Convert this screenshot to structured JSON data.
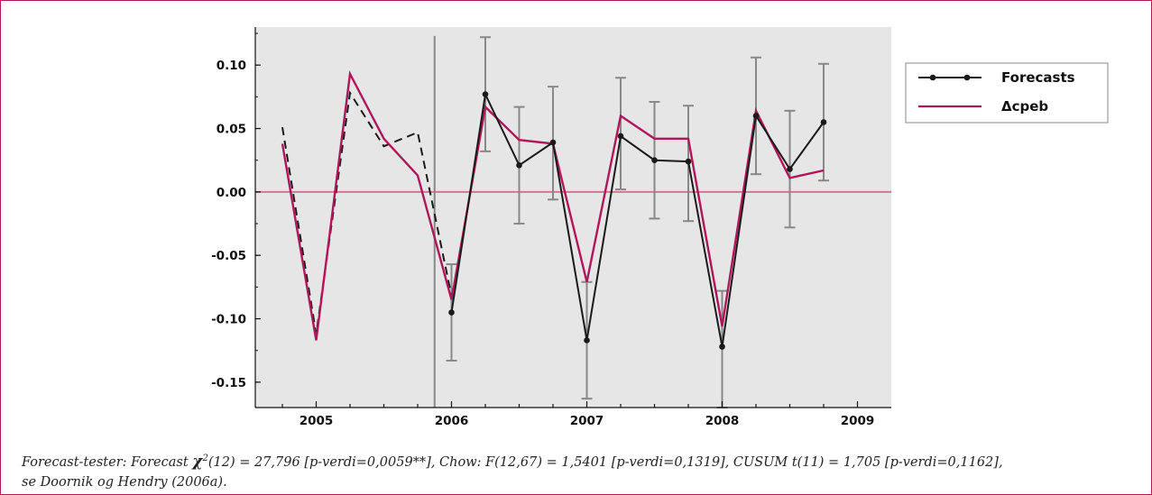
{
  "chart_data": {
    "type": "line",
    "title": "",
    "xlabel": "",
    "ylabel": "",
    "xlim": [
      2004.55,
      2009.25
    ],
    "ylim": [
      -0.17,
      0.13
    ],
    "x_ticks": [
      2005,
      2006,
      2007,
      2008,
      2009
    ],
    "x_tick_labels": [
      "2005",
      "2006",
      "2007",
      "2008",
      "2009"
    ],
    "y_ticks": [
      0.1,
      0.05,
      0.0,
      -0.05,
      -0.1,
      -0.15
    ],
    "y_tick_labels": [
      "0.10",
      "0.05",
      "0.00",
      "-0.05",
      "-0.10",
      "-0.15"
    ],
    "grid": false,
    "background": "#e6e6e6",
    "legend_position": "right",
    "colors": {
      "forecasts": "#1a1a1a",
      "actual": "#b0175a",
      "zero_line": "#d9738f",
      "error_bars": "#888888",
      "frame": "#b0175a"
    },
    "series": [
      {
        "name": "Forecasts",
        "style": "line-with-markers",
        "x": [
          2006.0,
          2006.25,
          2006.5,
          2006.75,
          2007.0,
          2007.25,
          2007.5,
          2007.75,
          2008.0,
          2008.25,
          2008.5,
          2008.75
        ],
        "values": [
          -0.095,
          0.077,
          0.021,
          0.039,
          -0.117,
          0.044,
          0.025,
          0.024,
          -0.122,
          0.06,
          0.018,
          0.055
        ],
        "error_low": [
          -0.133,
          0.032,
          -0.025,
          -0.006,
          -0.163,
          0.002,
          -0.021,
          -0.023,
          -0.17,
          0.014,
          -0.028,
          0.009
        ],
        "error_high": [
          -0.057,
          0.122,
          0.067,
          0.083,
          -0.071,
          0.09,
          0.071,
          0.068,
          -0.078,
          0.106,
          0.064,
          0.101
        ]
      },
      {
        "name": "Δcpeb",
        "style": "line",
        "x": [
          2004.75,
          2005.0,
          2005.25,
          2005.5,
          2005.75,
          2006.0,
          2006.25,
          2006.5,
          2006.75,
          2007.0,
          2007.25,
          2007.5,
          2007.75,
          2008.0,
          2008.25,
          2008.5,
          2008.75
        ],
        "values": [
          0.038,
          -0.117,
          0.093,
          0.042,
          0.013,
          -0.085,
          0.067,
          0.041,
          0.038,
          -0.071,
          0.06,
          0.042,
          0.042,
          -0.106,
          0.064,
          0.011,
          0.017
        ]
      },
      {
        "style": "dashed",
        "x": [
          2004.75,
          2005.0,
          2005.25,
          2005.5,
          2005.75,
          2006.0
        ],
        "values": [
          0.051,
          -0.112,
          0.078,
          0.036,
          0.047,
          -0.082
        ]
      }
    ],
    "vertical_marker_x": 2005.875
  },
  "legend": [
    {
      "label": "Forecasts"
    },
    {
      "label": "Δcpeb"
    }
  ],
  "caption": {
    "part1": "Forecast-tester: Forecast ",
    "chi": "χ",
    "sup": "2",
    "part2": "(12) = 27,796 [p-verdi=0,0059**], Chow: F(12,67) = 1,5401 [p-verdi=0,1319], CUSUM  t(11) = 1,705 [p-verdi=0,1162],",
    "line2": "se Doornik og Hendry (2006a)."
  }
}
